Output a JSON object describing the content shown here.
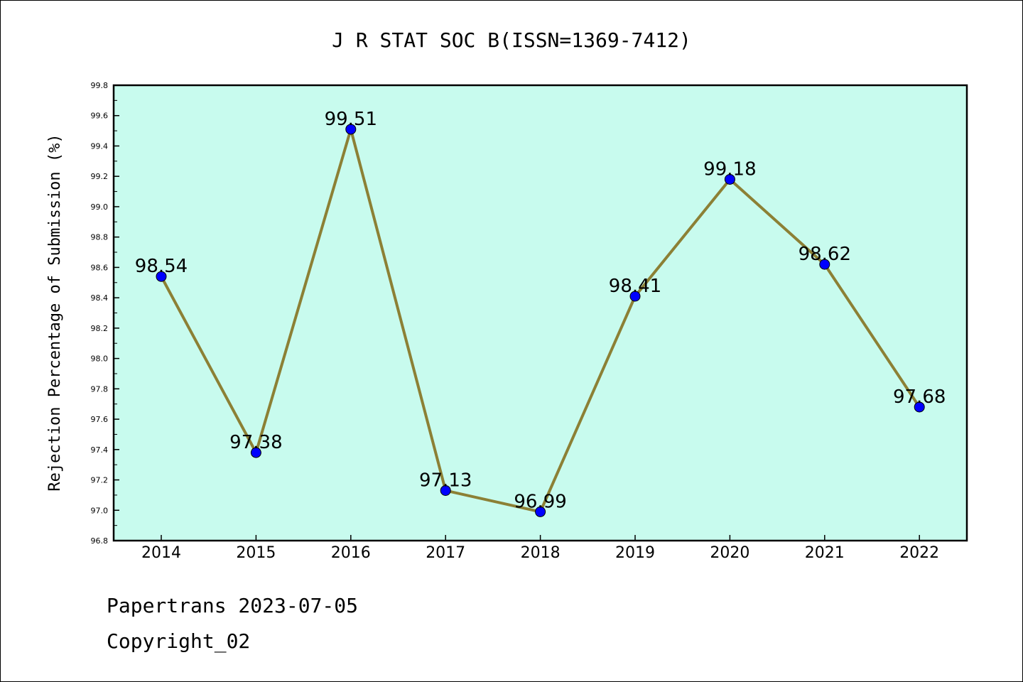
{
  "footer": {
    "line1": "Papertrans 2023-07-05",
    "line2": "Copyright_02"
  },
  "chart_data": {
    "type": "line",
    "title": "J R STAT SOC B(ISSN=1369-7412)",
    "xlabel": "",
    "ylabel": "Rejection Percentage of Submission (%)",
    "categories": [
      "2014",
      "2015",
      "2016",
      "2017",
      "2018",
      "2019",
      "2020",
      "2021",
      "2022"
    ],
    "values": [
      98.54,
      97.38,
      99.51,
      97.13,
      96.99,
      98.41,
      99.18,
      98.62,
      97.68
    ],
    "data_labels": [
      "98.54",
      "97.38",
      "99.51",
      "97.13",
      "96.99",
      "98.41",
      "99.18",
      "98.62",
      "97.68"
    ],
    "ylim": [
      96.8,
      99.8
    ],
    "yticks": [
      "96.8",
      "97.0",
      "97.2",
      "97.4",
      "97.6",
      "97.8",
      "98.0",
      "98.2",
      "98.4",
      "98.6",
      "98.8",
      "99.0",
      "99.2",
      "99.4",
      "99.6",
      "99.8"
    ],
    "grid": false,
    "legend": "none",
    "colors": {
      "plot_background": "#c8fbee",
      "line": "#8c8035",
      "marker": "#0000ff"
    }
  }
}
